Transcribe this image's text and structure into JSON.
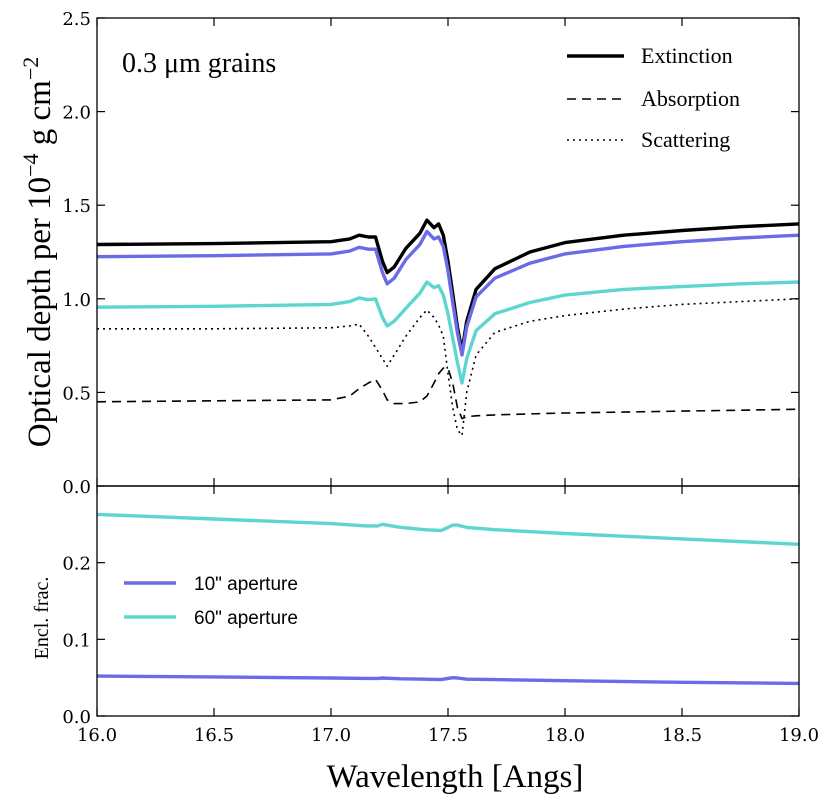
{
  "chart_data": [
    {
      "type": "line",
      "panel": "top",
      "title": "",
      "annotation": "0.3 μm grains",
      "xlabel": "Wavelength [Angs]",
      "ylabel": "Optical depth per 10⁻⁴ g cm⁻²",
      "ylabel_main": "Optical depth per 10",
      "ylabel_exp1": "−4",
      "ylabel_mid": " g cm",
      "ylabel_exp2": "−2",
      "xlim": [
        16.0,
        19.0
      ],
      "ylim": [
        0.0,
        2.5
      ],
      "yticks": [
        0.0,
        0.5,
        1.0,
        1.5,
        2.0,
        2.5
      ],
      "ytick_labels": [
        "0.0",
        "0.5",
        "1.0",
        "1.5",
        "2.0",
        "2.5"
      ],
      "legend": {
        "location": "top-right",
        "entries": [
          {
            "label": "Extinction",
            "style": "solid"
          },
          {
            "label": "Absorption",
            "style": "dashed"
          },
          {
            "label": "Scattering",
            "style": "dotted"
          }
        ]
      },
      "x": [
        16.0,
        16.5,
        17.0,
        17.08,
        17.12,
        17.16,
        17.19,
        17.22,
        17.24,
        17.27,
        17.32,
        17.38,
        17.41,
        17.44,
        17.46,
        17.48,
        17.5,
        17.52,
        17.54,
        17.56,
        17.58,
        17.62,
        17.7,
        17.85,
        18.0,
        18.25,
        18.5,
        18.75,
        19.0
      ],
      "series": [
        {
          "name": "Extinction",
          "color": "#000000",
          "style": "solid",
          "values": [
            1.29,
            1.295,
            1.305,
            1.32,
            1.34,
            1.33,
            1.33,
            1.2,
            1.14,
            1.17,
            1.27,
            1.35,
            1.42,
            1.38,
            1.4,
            1.34,
            1.2,
            1.03,
            0.85,
            0.72,
            0.88,
            1.05,
            1.16,
            1.25,
            1.3,
            1.34,
            1.365,
            1.385,
            1.4
          ]
        },
        {
          "name": "Extinction (10\" aperture)",
          "color": "#6b6be8",
          "style": "solid",
          "values": [
            1.225,
            1.23,
            1.24,
            1.255,
            1.275,
            1.265,
            1.265,
            1.14,
            1.08,
            1.11,
            1.21,
            1.29,
            1.36,
            1.32,
            1.33,
            1.28,
            1.15,
            0.98,
            0.82,
            0.7,
            0.85,
            1.01,
            1.11,
            1.19,
            1.24,
            1.28,
            1.305,
            1.325,
            1.34
          ]
        },
        {
          "name": "Extinction (60\" aperture)",
          "color": "#5ed6d0",
          "style": "solid",
          "values": [
            0.955,
            0.96,
            0.97,
            0.985,
            1.005,
            0.995,
            1.0,
            0.9,
            0.855,
            0.88,
            0.95,
            1.03,
            1.09,
            1.06,
            1.07,
            1.02,
            0.92,
            0.79,
            0.66,
            0.55,
            0.68,
            0.83,
            0.92,
            0.98,
            1.02,
            1.05,
            1.065,
            1.08,
            1.09
          ]
        },
        {
          "name": "Absorption",
          "color": "#000000",
          "style": "dashed",
          "values": [
            0.45,
            0.455,
            0.46,
            0.48,
            0.52,
            0.55,
            0.57,
            0.51,
            0.46,
            0.44,
            0.44,
            0.45,
            0.48,
            0.55,
            0.6,
            0.63,
            0.63,
            0.55,
            0.42,
            0.36,
            0.37,
            0.375,
            0.38,
            0.385,
            0.39,
            0.395,
            0.4,
            0.405,
            0.41
          ]
        },
        {
          "name": "Scattering",
          "color": "#000000",
          "style": "dotted",
          "values": [
            0.84,
            0.84,
            0.845,
            0.855,
            0.865,
            0.8,
            0.74,
            0.68,
            0.64,
            0.7,
            0.8,
            0.9,
            0.94,
            0.9,
            0.86,
            0.8,
            0.6,
            0.42,
            0.3,
            0.27,
            0.5,
            0.7,
            0.82,
            0.88,
            0.91,
            0.945,
            0.97,
            0.985,
            1.0
          ]
        }
      ]
    },
    {
      "type": "line",
      "panel": "bottom",
      "title": "",
      "xlabel": "Wavelength [Angs]",
      "ylabel": "Encl. frac.",
      "xlim": [
        16.0,
        19.0
      ],
      "ylim": [
        0.0,
        0.3
      ],
      "xticks": [
        16.0,
        16.5,
        17.0,
        17.5,
        18.0,
        18.5,
        19.0
      ],
      "xtick_labels": [
        "16.0",
        "16.5",
        "17.0",
        "17.5",
        "18.0",
        "18.5",
        "19.0"
      ],
      "yticks": [
        0.0,
        0.1,
        0.2
      ],
      "ytick_labels": [
        "0.0",
        "0.1",
        "0.2"
      ],
      "legend": {
        "location": "center-left",
        "entries": [
          {
            "label": "10\" aperture",
            "color": "#6b6be8"
          },
          {
            "label": "60\" aperture",
            "color": "#5ed6d0"
          }
        ]
      },
      "x": [
        16.0,
        16.5,
        17.0,
        17.15,
        17.2,
        17.22,
        17.26,
        17.3,
        17.4,
        17.47,
        17.5,
        17.52,
        17.54,
        17.58,
        17.7,
        18.0,
        18.5,
        19.0
      ],
      "series": [
        {
          "name": "10\" aperture",
          "color": "#6b6be8",
          "values": [
            0.052,
            0.051,
            0.0495,
            0.049,
            0.049,
            0.0495,
            0.049,
            0.0485,
            0.048,
            0.0475,
            0.049,
            0.05,
            0.0495,
            0.048,
            0.0475,
            0.046,
            0.044,
            0.0425
          ]
        },
        {
          "name": "60\" aperture",
          "color": "#5ed6d0",
          "values": [
            0.263,
            0.257,
            0.251,
            0.248,
            0.248,
            0.25,
            0.248,
            0.246,
            0.243,
            0.242,
            0.246,
            0.249,
            0.249,
            0.246,
            0.243,
            0.238,
            0.231,
            0.224
          ]
        }
      ]
    }
  ]
}
